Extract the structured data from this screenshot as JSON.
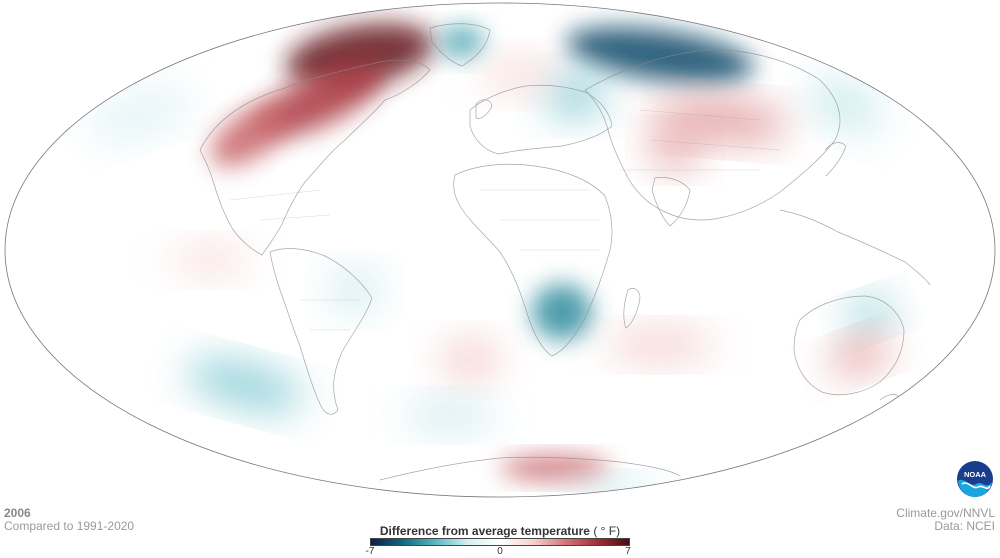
{
  "year": "2006",
  "baseline": "Compared to 1991-2020",
  "legend": {
    "title": "Difference from average temperature",
    "unit": "( ° F)",
    "min_label": "-7",
    "mid_label": "0",
    "max_label": "7",
    "min": -7,
    "max": 7,
    "colors": [
      "#0b1f4a",
      "#0f6a80",
      "#59b8c4",
      "#d6f0f2",
      "#ffffff",
      "#f6d3d0",
      "#d6787a",
      "#a32f37",
      "#4a0b14"
    ]
  },
  "credits": {
    "source": "Climate.gov/NNVL",
    "data": "Data: NCEI"
  },
  "logo": {
    "icon": "noaa-logo-icon",
    "text": "NOAA"
  },
  "map": {
    "projection": "mollweide",
    "ocean_color": "#ffffff",
    "outline_color": "#777777",
    "anomalies": [
      {
        "region": "northern-canada-greenland",
        "value": 6.5
      },
      {
        "region": "hudson-bay",
        "value": 5
      },
      {
        "region": "western-canada",
        "value": 4
      },
      {
        "region": "greenland-sea",
        "value": -4
      },
      {
        "region": "northern-siberia",
        "value": -6
      },
      {
        "region": "eastern-europe",
        "value": -3
      },
      {
        "region": "central-asia",
        "value": 3
      },
      {
        "region": "china",
        "value": 3
      },
      {
        "region": "northern-europe",
        "value": 1.5
      },
      {
        "region": "southern-africa",
        "value": -4.5
      },
      {
        "region": "south-pacific-west",
        "value": -3
      },
      {
        "region": "eastern-australia",
        "value": -3
      },
      {
        "region": "southeast-australia",
        "value": 3
      },
      {
        "region": "antarctic-peninsula-east",
        "value": 4
      },
      {
        "region": "antarctica-south-pacific",
        "value": -2
      },
      {
        "region": "south-atlantic",
        "value": 2
      },
      {
        "region": "eastern-pacific",
        "value": 1.5
      },
      {
        "region": "north-pacific",
        "value": -1.5
      },
      {
        "region": "south-indian-ocean",
        "value": 2
      },
      {
        "region": "southern-ocean-atlantic",
        "value": -2
      },
      {
        "region": "south-america-brazil",
        "value": -2
      },
      {
        "region": "alaska-bering",
        "value": -2
      }
    ]
  }
}
